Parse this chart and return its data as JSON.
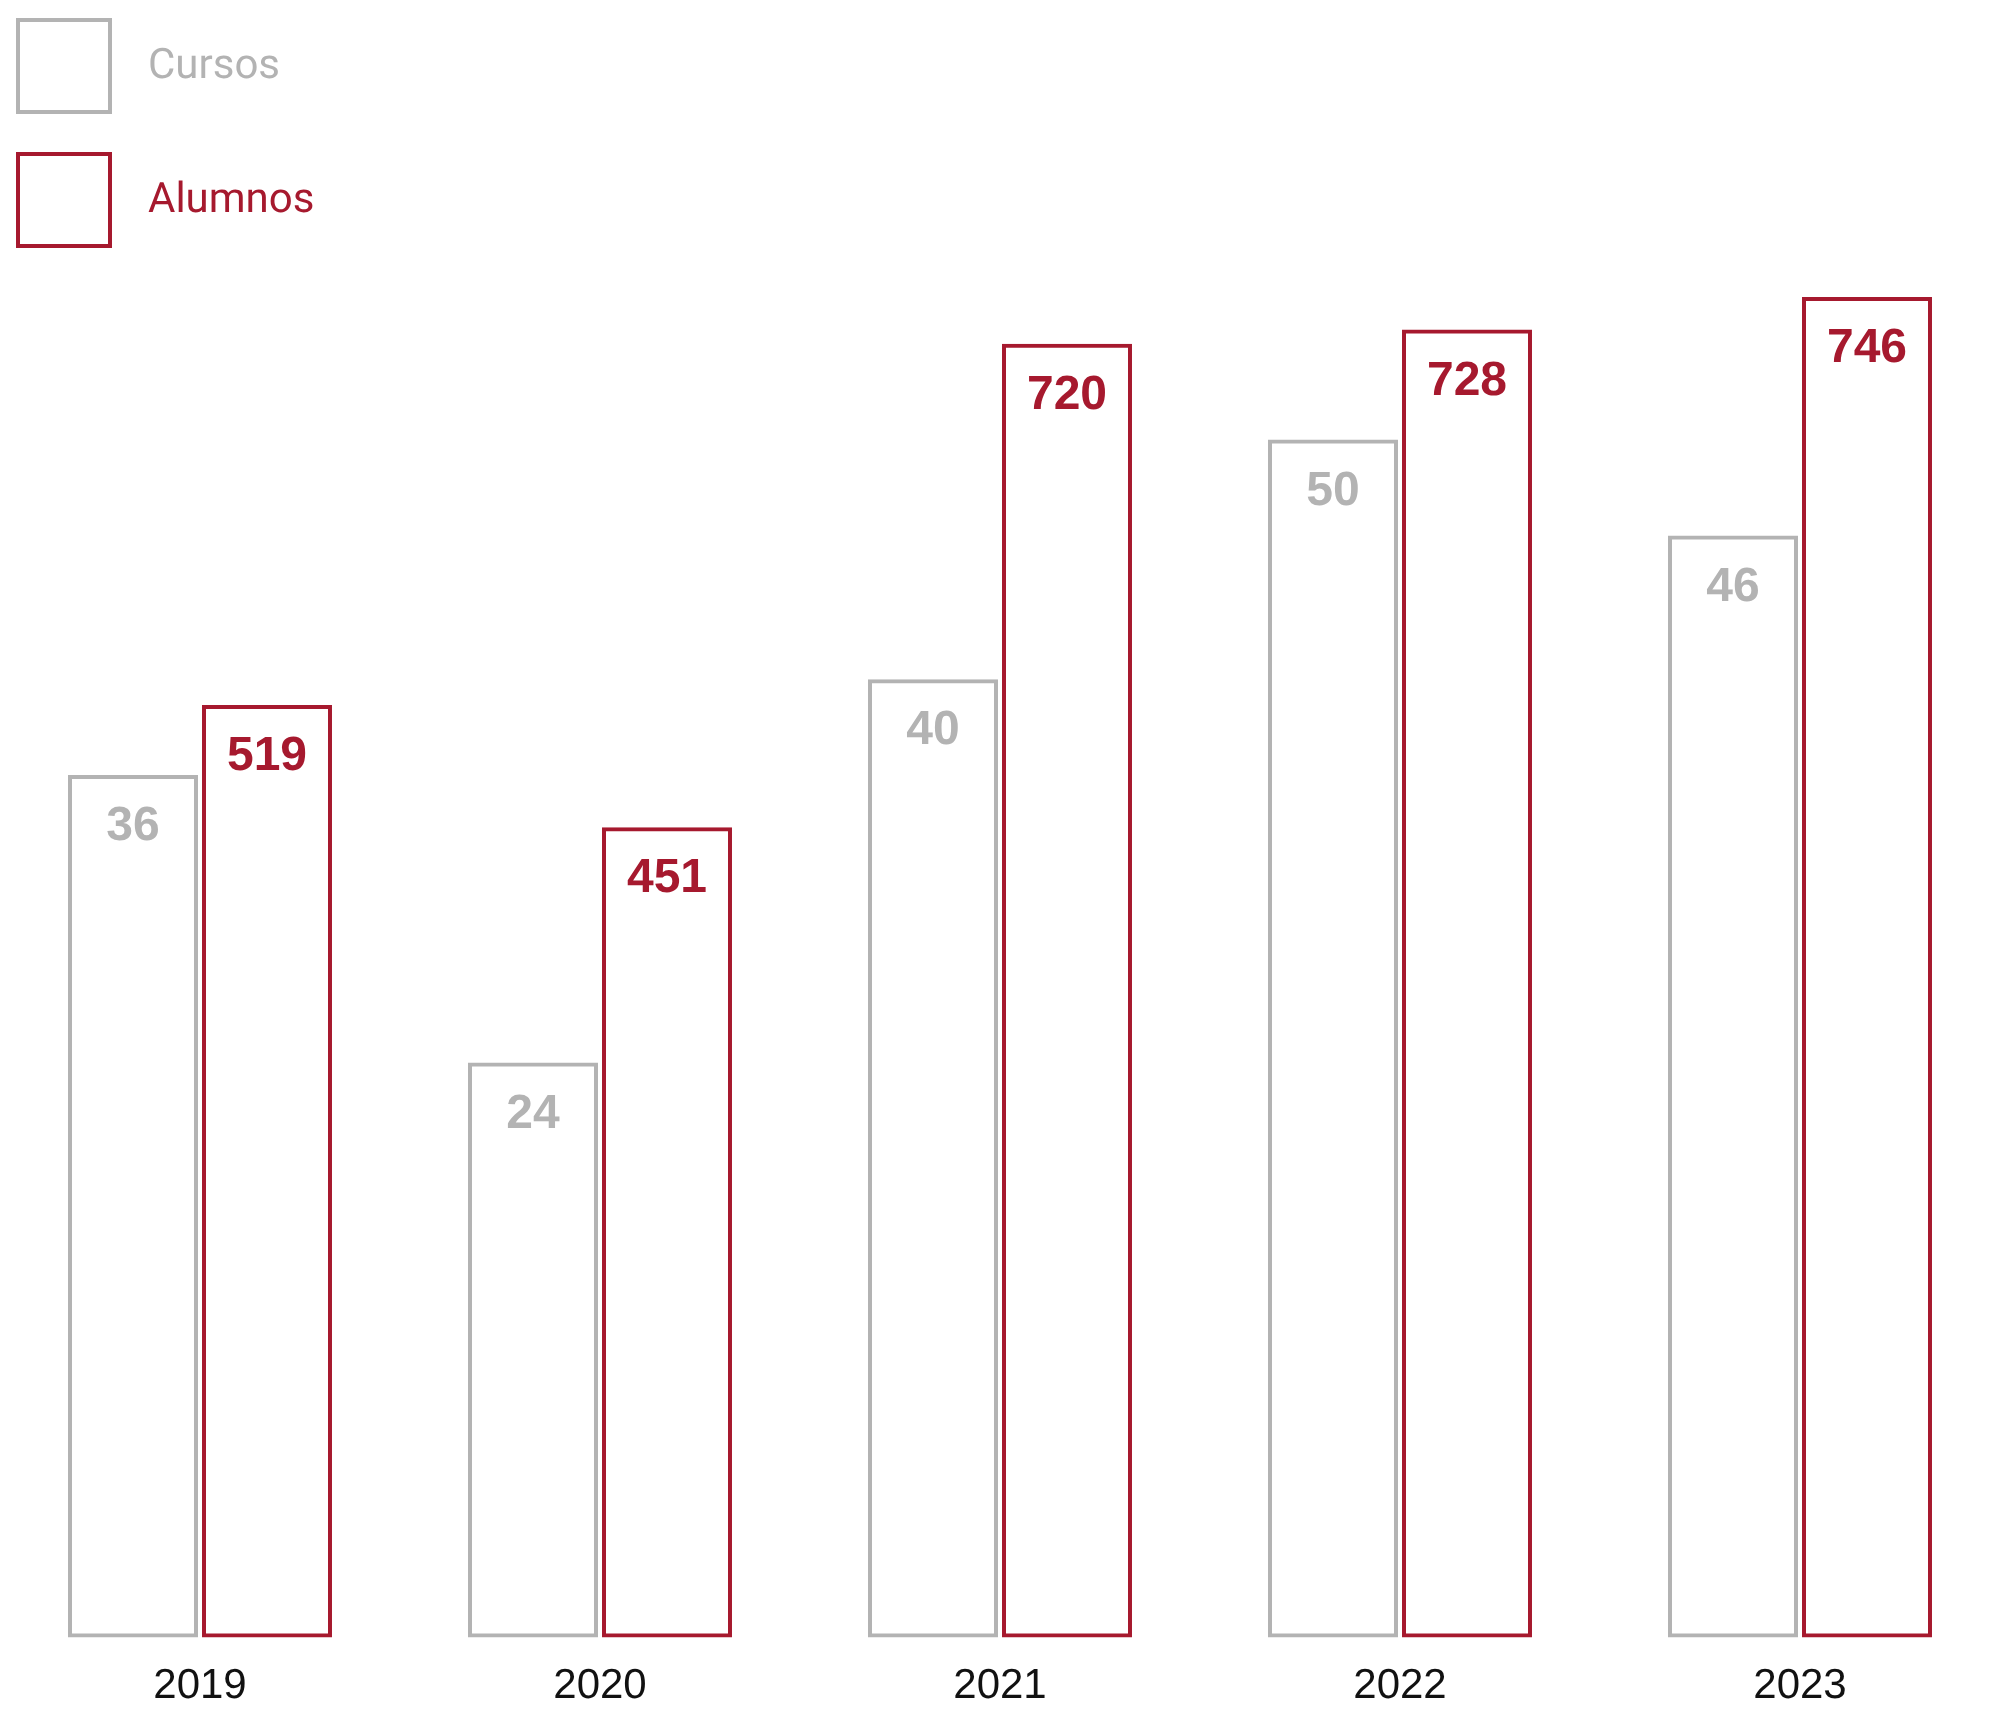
{
  "chart_data": {
    "type": "bar",
    "categories": [
      "2019",
      "2020",
      "2021",
      "2022",
      "2023"
    ],
    "series": [
      {
        "name": "Cursos",
        "color": "#b3b3b3",
        "values": [
          36,
          24,
          40,
          50,
          46
        ]
      },
      {
        "name": "Alumnos",
        "color": "#a6192e",
        "values": [
          519,
          451,
          720,
          728,
          746
        ],
        "axis": "y2"
      }
    ],
    "tick_labels": "x",
    "data_labels": true,
    "legend": "top left",
    "grid": false
  }
}
